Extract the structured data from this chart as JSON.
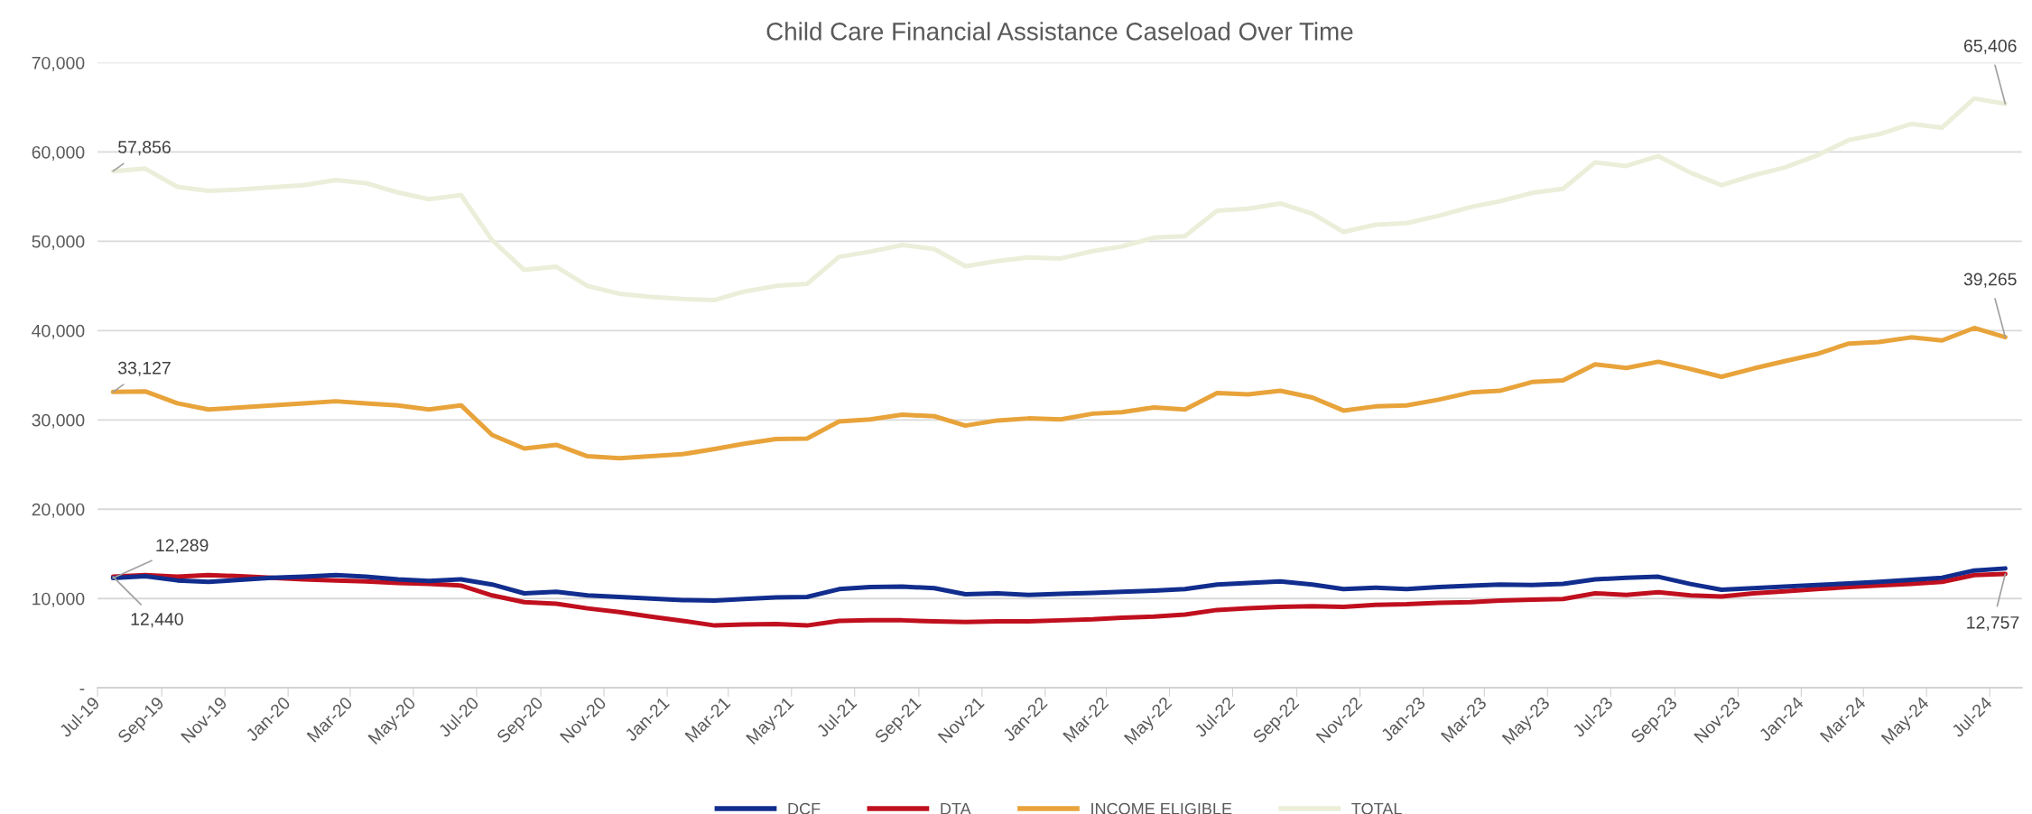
{
  "chart_data": {
    "type": "line",
    "title": "Child Care Financial Assistance Caseload Over Time",
    "x": [
      "2019-07-16",
      "2019-08-16",
      "2019-09-16",
      "2019-10-16",
      "2019-11-16",
      "2019-12-16",
      "2020-01-16",
      "2020-02-16",
      "2020-03-16",
      "2020-04-16",
      "2020-05-16",
      "2020-06-16",
      "2020-07-16",
      "2020-08-16",
      "2020-09-16",
      "2020-10-16",
      "2020-11-16",
      "2020-12-16",
      "2021-01-16",
      "2021-02-16",
      "2021-03-16",
      "2021-04-16",
      "2021-05-16",
      "2021-06-16",
      "2021-07-16",
      "2021-08-16",
      "2021-09-16",
      "2021-10-16",
      "2021-11-16",
      "2021-12-16",
      "2022-01-16",
      "2022-02-16",
      "2022-03-16",
      "2022-04-16",
      "2022-05-16",
      "2022-06-16",
      "2022-07-16",
      "2022-08-16",
      "2022-09-16",
      "2022-10-16",
      "2022-11-16",
      "2022-12-16",
      "2023-01-16",
      "2023-02-16",
      "2023-03-16",
      "2023-04-16",
      "2023-05-16",
      "2023-06-16",
      "2023-07-16",
      "2023-08-16",
      "2023-09-16",
      "2023-10-16",
      "2023-11-16",
      "2023-12-16",
      "2024-01-16",
      "2024-02-16",
      "2024-03-16",
      "2024-04-16",
      "2024-05-16",
      "2024-06-16",
      "2024-07-16"
    ],
    "series": [
      {
        "name": "DCF",
        "color": "#112d8e",
        "values": [
          12289,
          12500,
          12030,
          11860,
          12090,
          12330,
          12440,
          12620,
          12440,
          12150,
          11980,
          12150,
          11570,
          10580,
          10760,
          10350,
          10170,
          10000,
          9830,
          9770,
          9940,
          10120,
          10170,
          11050,
          11280,
          11340,
          11160,
          10470,
          10580,
          10410,
          10520,
          10640,
          10760,
          10870,
          11050,
          11570,
          11740,
          11920,
          11570,
          11050,
          11220,
          11050,
          11280,
          11450,
          11570,
          11510,
          11630,
          12150,
          12330,
          12440,
          11630,
          10990,
          11160,
          11340,
          11510,
          11690,
          11860,
          12090,
          12330,
          13140,
          13370
        ],
        "value_labels": [
          "12,289",
          null,
          null,
          null,
          null,
          null,
          null,
          null,
          null,
          null,
          null,
          null,
          null,
          null,
          null,
          null,
          null,
          null,
          null,
          null,
          null,
          null,
          null,
          null,
          null,
          null,
          null,
          null,
          null,
          null,
          null,
          null,
          null,
          null,
          null,
          null,
          null,
          null,
          null,
          null,
          null,
          null,
          null,
          null,
          null,
          null,
          null,
          null,
          null,
          null,
          null,
          null,
          null,
          null,
          null,
          null,
          null,
          null,
          null,
          null,
          null
        ]
      },
      {
        "name": "DTA",
        "color": "#c00f1e",
        "values": [
          12440,
          12620,
          12440,
          12620,
          12500,
          12330,
          12150,
          12030,
          11920,
          11740,
          11630,
          11450,
          10350,
          9590,
          9420,
          8900,
          8490,
          7970,
          7500,
          6980,
          7090,
          7150,
          6980,
          7500,
          7560,
          7560,
          7440,
          7380,
          7440,
          7440,
          7560,
          7670,
          7850,
          7970,
          8200,
          8720,
          8900,
          9070,
          9130,
          9070,
          9300,
          9360,
          9530,
          9590,
          9770,
          9880,
          9940,
          10580,
          10410,
          10700,
          10350,
          10230,
          10580,
          10810,
          11050,
          11280,
          11450,
          11630,
          11860,
          12620,
          12757
        ],
        "value_labels": [
          "12,440",
          null,
          null,
          null,
          null,
          null,
          null,
          null,
          null,
          null,
          null,
          null,
          null,
          null,
          null,
          null,
          null,
          null,
          null,
          null,
          null,
          null,
          null,
          null,
          null,
          null,
          null,
          null,
          null,
          null,
          null,
          null,
          null,
          null,
          null,
          null,
          null,
          null,
          null,
          null,
          null,
          null,
          null,
          null,
          null,
          null,
          null,
          null,
          null,
          null,
          null,
          null,
          null,
          null,
          null,
          null,
          null,
          null,
          null,
          null,
          "12,757"
        ]
      },
      {
        "name": "INCOME ELIGIBLE",
        "color": "#e8a33a",
        "values": [
          33127,
          33200,
          31860,
          31160,
          31400,
          31630,
          31860,
          32090,
          31860,
          31630,
          31160,
          31630,
          28310,
          26800,
          27210,
          25930,
          25700,
          25930,
          26160,
          26740,
          27330,
          27850,
          27910,
          29830,
          30060,
          30580,
          30410,
          29360,
          29940,
          30170,
          30060,
          30700,
          30870,
          31400,
          31160,
          33020,
          32850,
          33260,
          32500,
          31050,
          31510,
          31630,
          32270,
          33080,
          33260,
          34240,
          34420,
          36220,
          35810,
          36510,
          35700,
          34830,
          35760,
          36570,
          37380,
          38550,
          38720,
          39240,
          38900,
          40290,
          39265
        ],
        "value_labels": [
          "33,127",
          null,
          null,
          null,
          null,
          null,
          null,
          null,
          null,
          null,
          null,
          null,
          null,
          null,
          null,
          null,
          null,
          null,
          null,
          null,
          null,
          null,
          null,
          null,
          null,
          null,
          null,
          null,
          null,
          null,
          null,
          null,
          null,
          null,
          null,
          null,
          null,
          null,
          null,
          null,
          null,
          null,
          null,
          null,
          null,
          null,
          null,
          null,
          null,
          null,
          null,
          null,
          null,
          null,
          null,
          null,
          null,
          null,
          null,
          null,
          "39,265"
        ]
      },
      {
        "name": "TOTAL",
        "color": "#ebeed9",
        "values": [
          57856,
          58140,
          56100,
          55640,
          55800,
          56050,
          56280,
          56860,
          56510,
          55470,
          54710,
          55170,
          50120,
          46800,
          47150,
          45000,
          44130,
          43780,
          43550,
          43430,
          44360,
          45000,
          45230,
          48260,
          48840,
          49590,
          49130,
          47210,
          47790,
          48200,
          48080,
          48900,
          49420,
          50410,
          50580,
          53430,
          53660,
          54240,
          53080,
          51050,
          51860,
          52030,
          52850,
          53840,
          54480,
          55410,
          55870,
          58840,
          58430,
          59540,
          57680,
          56280,
          57390,
          58260,
          59600,
          61340,
          61980,
          63140,
          62730,
          65990,
          65406
        ],
        "value_labels": [
          "57,856",
          null,
          null,
          null,
          null,
          null,
          null,
          null,
          null,
          null,
          null,
          null,
          null,
          null,
          null,
          null,
          null,
          null,
          null,
          null,
          null,
          null,
          null,
          null,
          null,
          null,
          null,
          null,
          null,
          null,
          null,
          null,
          null,
          null,
          null,
          null,
          null,
          null,
          null,
          null,
          null,
          null,
          null,
          null,
          null,
          null,
          null,
          null,
          null,
          null,
          null,
          null,
          null,
          null,
          null,
          null,
          null,
          null,
          null,
          null,
          "65,406"
        ]
      }
    ],
    "xlim": [
      "2019-07-01",
      "2024-08-01"
    ],
    "xticks": [
      {
        "value": "2019-07-01",
        "label": "Jul-19"
      },
      {
        "value": "2019-09-01",
        "label": "Sep-19"
      },
      {
        "value": "2019-11-01",
        "label": "Nov-19"
      },
      {
        "value": "2020-01-01",
        "label": "Jan-20"
      },
      {
        "value": "2020-03-01",
        "label": "Mar-20"
      },
      {
        "value": "2020-05-01",
        "label": "May-20"
      },
      {
        "value": "2020-07-01",
        "label": "Jul-20"
      },
      {
        "value": "2020-09-01",
        "label": "Sep-20"
      },
      {
        "value": "2020-11-01",
        "label": "Nov-20"
      },
      {
        "value": "2021-01-01",
        "label": "Jan-21"
      },
      {
        "value": "2021-03-01",
        "label": "Mar-21"
      },
      {
        "value": "2021-05-01",
        "label": "May-21"
      },
      {
        "value": "2021-07-01",
        "label": "Jul-21"
      },
      {
        "value": "2021-09-01",
        "label": "Sep-21"
      },
      {
        "value": "2021-11-01",
        "label": "Nov-21"
      },
      {
        "value": "2022-01-01",
        "label": "Jan-22"
      },
      {
        "value": "2022-03-01",
        "label": "Mar-22"
      },
      {
        "value": "2022-05-01",
        "label": "May-22"
      },
      {
        "value": "2022-07-01",
        "label": "Jul-22"
      },
      {
        "value": "2022-09-01",
        "label": "Sep-22"
      },
      {
        "value": "2022-11-01",
        "label": "Nov-22"
      },
      {
        "value": "2023-01-01",
        "label": "Jan-23"
      },
      {
        "value": "2023-03-01",
        "label": "Mar-23"
      },
      {
        "value": "2023-05-01",
        "label": "May-23"
      },
      {
        "value": "2023-07-01",
        "label": "Jul-23"
      },
      {
        "value": "2023-09-01",
        "label": "Sep-23"
      },
      {
        "value": "2023-11-01",
        "label": "Nov-23"
      },
      {
        "value": "2024-01-01",
        "label": "Jan-24"
      },
      {
        "value": "2024-03-01",
        "label": "Mar-24"
      },
      {
        "value": "2024-05-01",
        "label": "May-24"
      },
      {
        "value": "2024-07-01",
        "label": "Jul-24"
      }
    ],
    "ylim": [
      0,
      70000
    ],
    "yticks": [
      {
        "value": 0,
        "label": "-"
      },
      {
        "value": 10000,
        "label": "10,000"
      },
      {
        "value": 20000,
        "label": "20,000"
      },
      {
        "value": 30000,
        "label": "30,000"
      },
      {
        "value": 40000,
        "label": "40,000"
      },
      {
        "value": 50000,
        "label": "50,000"
      },
      {
        "value": 60000,
        "label": "60,000"
      },
      {
        "value": 70000,
        "label": "70,000"
      }
    ],
    "grid": "y",
    "legend": "bottom",
    "marker": "none",
    "line_style": "solid"
  }
}
